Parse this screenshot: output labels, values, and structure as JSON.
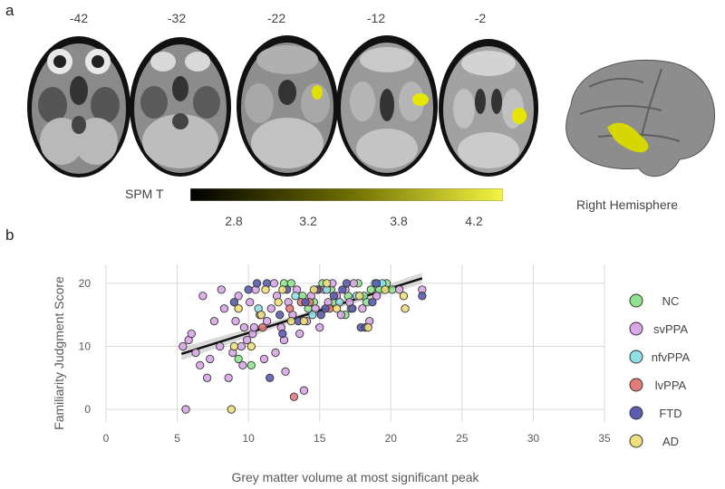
{
  "panels": {
    "a": "a",
    "b": "b"
  },
  "slices": [
    {
      "label": "-42",
      "activation": false
    },
    {
      "label": "-32",
      "activation": false
    },
    {
      "label": "-22",
      "activation": true
    },
    {
      "label": "-12",
      "activation": true
    },
    {
      "label": "-2",
      "activation": true
    }
  ],
  "colorbar": {
    "title": "SPM T",
    "ticks": [
      "2.8",
      "3.2",
      "3.8",
      "4.2"
    ],
    "colors": [
      "#000000",
      "#6b6b00",
      "#f5f542"
    ]
  },
  "render": {
    "label": "Right Hemisphere"
  },
  "chart_data": {
    "type": "scatter",
    "xlabel": "Grey matter volume at most significant peak",
    "ylabel": "Familiarity Judgment Score",
    "xlim": [
      0,
      35
    ],
    "ylim": [
      -2,
      23
    ],
    "xticks": [
      0,
      5,
      10,
      15,
      20,
      25,
      30,
      35
    ],
    "yticks": [
      0,
      10,
      20
    ],
    "grid": true,
    "legend_position": "right",
    "fit_line": {
      "x": [
        5.3,
        22.2
      ],
      "y": [
        8.8,
        20.8
      ]
    },
    "series": [
      {
        "name": "NC",
        "color": "#8fe38f",
        "points": [
          [
            12.5,
            20
          ],
          [
            13.8,
            18
          ],
          [
            14.6,
            17
          ],
          [
            15.2,
            20
          ],
          [
            16.0,
            17
          ],
          [
            16.8,
            15
          ],
          [
            17.2,
            16
          ],
          [
            17.7,
            20
          ],
          [
            18.1,
            18
          ],
          [
            18.6,
            19
          ],
          [
            19.2,
            19
          ],
          [
            20.1,
            19
          ],
          [
            13.0,
            20
          ],
          [
            15.8,
            19
          ],
          [
            17.0,
            18
          ],
          [
            9.3,
            8
          ],
          [
            10.2,
            7
          ],
          [
            14.2,
            16
          ],
          [
            18.3,
            17
          ],
          [
            19.7,
            20
          ]
        ]
      },
      {
        "name": "svPPA",
        "color": "#d9a6e6",
        "points": [
          [
            5.6,
            0
          ],
          [
            5.4,
            10
          ],
          [
            5.8,
            11
          ],
          [
            6.0,
            12
          ],
          [
            6.3,
            9
          ],
          [
            6.6,
            7
          ],
          [
            7.1,
            5
          ],
          [
            7.3,
            8
          ],
          [
            7.6,
            14
          ],
          [
            8.0,
            10
          ],
          [
            8.3,
            16
          ],
          [
            8.6,
            5
          ],
          [
            8.9,
            9
          ],
          [
            9.1,
            14
          ],
          [
            9.3,
            18
          ],
          [
            9.5,
            10
          ],
          [
            9.7,
            13
          ],
          [
            9.9,
            11
          ],
          [
            10.1,
            17
          ],
          [
            10.3,
            12
          ],
          [
            10.5,
            19
          ],
          [
            10.8,
            15
          ],
          [
            11.1,
            8
          ],
          [
            11.3,
            14
          ],
          [
            11.6,
            16
          ],
          [
            11.8,
            20
          ],
          [
            12.0,
            18
          ],
          [
            12.3,
            13
          ],
          [
            12.5,
            11
          ],
          [
            12.8,
            17
          ],
          [
            13.1,
            15
          ],
          [
            13.4,
            19
          ],
          [
            13.6,
            12
          ],
          [
            13.9,
            3
          ],
          [
            14.1,
            14
          ],
          [
            14.4,
            18
          ],
          [
            14.7,
            16
          ],
          [
            15.0,
            13
          ],
          [
            15.3,
            19
          ],
          [
            15.6,
            17
          ],
          [
            15.9,
            20
          ],
          [
            16.2,
            18
          ],
          [
            16.5,
            15
          ],
          [
            16.8,
            19
          ],
          [
            17.1,
            17
          ],
          [
            17.4,
            20
          ],
          [
            18.0,
            16
          ],
          [
            18.5,
            14
          ],
          [
            19.0,
            18
          ],
          [
            20.6,
            19
          ],
          [
            22.2,
            19
          ],
          [
            6.8,
            18
          ],
          [
            8.1,
            19
          ],
          [
            10.4,
            13
          ],
          [
            11.9,
            9
          ],
          [
            12.6,
            6
          ],
          [
            9.6,
            7
          ]
        ]
      },
      {
        "name": "nfvPPA",
        "color": "#8fe0e6",
        "points": [
          [
            10.7,
            16
          ],
          [
            13.3,
            18
          ],
          [
            14.5,
            15
          ],
          [
            15.5,
            19
          ],
          [
            16.4,
            17
          ],
          [
            17.6,
            18
          ],
          [
            18.9,
            20
          ],
          [
            19.4,
            20
          ]
        ]
      },
      {
        "name": "lvPPA",
        "color": "#e47a7a",
        "points": [
          [
            11.0,
            13
          ],
          [
            12.9,
            16
          ],
          [
            13.2,
            2
          ],
          [
            13.7,
            17
          ],
          [
            14.3,
            17
          ],
          [
            14.9,
            19
          ],
          [
            15.7,
            16
          ]
        ]
      },
      {
        "name": "FTD",
        "color": "#5b5bb0",
        "points": [
          [
            9.0,
            17
          ],
          [
            10.6,
            20
          ],
          [
            11.3,
            20
          ],
          [
            11.5,
            5
          ],
          [
            12.2,
            15
          ],
          [
            12.7,
            19
          ],
          [
            13.5,
            14
          ],
          [
            14.0,
            17
          ],
          [
            14.8,
            19
          ],
          [
            15.4,
            16
          ],
          [
            16.0,
            18
          ],
          [
            16.6,
            19
          ],
          [
            17.3,
            16
          ],
          [
            17.9,
            13
          ],
          [
            18.2,
            13
          ],
          [
            19.0,
            20
          ],
          [
            22.2,
            18
          ],
          [
            10.0,
            19
          ],
          [
            12.4,
            12
          ],
          [
            15.1,
            15
          ],
          [
            16.9,
            20
          ],
          [
            18.7,
            17
          ]
        ]
      },
      {
        "name": "AD",
        "color": "#f0df7a",
        "points": [
          [
            8.8,
            0
          ],
          [
            9.0,
            10
          ],
          [
            9.3,
            16
          ],
          [
            10.2,
            10
          ],
          [
            11.2,
            19
          ],
          [
            12.1,
            17
          ],
          [
            13.0,
            14
          ],
          [
            13.9,
            14
          ],
          [
            15.5,
            20
          ],
          [
            16.2,
            16
          ],
          [
            17.8,
            18
          ],
          [
            18.4,
            13
          ],
          [
            19.6,
            19
          ],
          [
            21.0,
            16
          ],
          [
            20.9,
            18
          ],
          [
            14.6,
            19
          ],
          [
            10.9,
            15
          ],
          [
            12.4,
            19
          ]
        ]
      }
    ]
  }
}
